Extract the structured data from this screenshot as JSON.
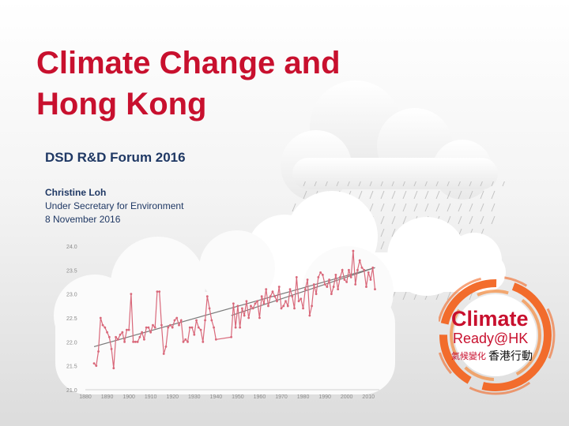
{
  "slide": {
    "title_line1": "Climate Change and",
    "title_line2": "Hong Kong",
    "subtitle": "DSD R&D Forum 2016",
    "speaker_name": "Christine Loh",
    "speaker_role": "Under Secretary for Environment",
    "date": "8 November 2016"
  },
  "logo": {
    "word1": "Climate",
    "word2": "Ready@HK",
    "chinese_red": "氣候變化",
    "chinese_black": "香港行動",
    "accent_color": "#f26522",
    "text_color": "#c8102e"
  },
  "colors": {
    "title": "#c8102e",
    "subtitle": "#1f3864",
    "series": "#d9687a",
    "trend": "#7a7a7a"
  },
  "chart_data": {
    "type": "line",
    "title": "",
    "xlabel": "",
    "ylabel": "",
    "xlim": [
      1880,
      2015
    ],
    "ylim": [
      21.0,
      24.0
    ],
    "xticks": [
      "1880",
      "1890",
      "1900",
      "1910",
      "1920",
      "1930",
      "1940",
      "1950",
      "1960",
      "1970",
      "1980",
      "1990",
      "2000",
      "2010"
    ],
    "yticks": [
      "24.0",
      "23.5",
      "23.0",
      "22.5",
      "22.0",
      "21.5",
      "21.0"
    ],
    "series": [
      {
        "x": [
          1884,
          1885,
          1886,
          1887,
          1888,
          1889,
          1890,
          1891,
          1892,
          1893,
          1894,
          1895,
          1896,
          1897,
          1898,
          1899,
          1900,
          1901,
          1902,
          1903,
          1904,
          1905,
          1906,
          1907,
          1908,
          1909,
          1910,
          1911,
          1912,
          1913,
          1914,
          1915,
          1916,
          1917,
          1918,
          1919,
          1920,
          1921,
          1922,
          1923,
          1924,
          1925,
          1926,
          1927,
          1928,
          1929,
          1930,
          1931,
          1932,
          1933,
          1934,
          1935,
          1936,
          1937,
          1938,
          1939,
          1940,
          1947,
          1948,
          1949,
          1950,
          1951,
          1952,
          1953,
          1954,
          1955,
          1956,
          1957,
          1958,
          1959,
          1960,
          1961,
          1962,
          1963,
          1964,
          1965,
          1966,
          1967,
          1968,
          1969,
          1970,
          1971,
          1972,
          1973,
          1974,
          1975,
          1976,
          1977,
          1978,
          1979,
          1980,
          1981,
          1982,
          1983,
          1984,
          1985,
          1986,
          1987,
          1988,
          1989,
          1990,
          1991,
          1992,
          1993,
          1994,
          1995,
          1996,
          1997,
          1998,
          1999,
          2000,
          2001,
          2002,
          2003,
          2004,
          2005,
          2006,
          2007,
          2008,
          2009,
          2010,
          2011,
          2012,
          2013
        ],
        "values": [
          21.55,
          21.5,
          21.8,
          22.5,
          22.35,
          22.3,
          22.2,
          22.1,
          21.85,
          21.45,
          22.1,
          22.05,
          22.15,
          22.2,
          22.0,
          22.25,
          22.25,
          23.0,
          22.0,
          22.0,
          22.0,
          22.1,
          22.2,
          22.05,
          22.3,
          22.3,
          22.2,
          22.35,
          22.3,
          23.05,
          23.05,
          22.35,
          21.75,
          21.9,
          22.3,
          22.35,
          22.3,
          22.45,
          22.5,
          22.35,
          22.45,
          22.0,
          22.05,
          22.0,
          22.3,
          22.3,
          22.15,
          22.45,
          22.3,
          22.25,
          22.0,
          22.45,
          22.95,
          22.7,
          22.45,
          22.3,
          22.05,
          22.1,
          22.8,
          22.3,
          22.75,
          22.3,
          22.7,
          22.55,
          22.85,
          22.5,
          22.75,
          22.7,
          22.8,
          22.85,
          22.5,
          22.95,
          22.8,
          23.1,
          22.75,
          22.95,
          23.05,
          22.95,
          22.85,
          23.15,
          22.7,
          22.75,
          22.85,
          22.75,
          23.1,
          22.95,
          22.7,
          23.35,
          22.85,
          22.9,
          22.7,
          23.1,
          23.3,
          22.55,
          22.75,
          23.2,
          23.0,
          23.35,
          23.45,
          23.4,
          23.2,
          23.15,
          23.3,
          23.0,
          23.15,
          23.4,
          23.1,
          23.35,
          23.5,
          23.3,
          23.25,
          23.5,
          23.35,
          23.9,
          23.2,
          23.5,
          23.7,
          23.55,
          23.5,
          23.15,
          23.45,
          23.3,
          23.55,
          23.1
        ]
      }
    ],
    "trend": [
      {
        "x": [
          1884,
          2013
        ],
        "values": [
          21.9,
          23.55
        ]
      },
      {
        "x": [
          1947,
          2013
        ],
        "values": [
          22.55,
          23.55
        ]
      }
    ],
    "grid": false,
    "legend": "none"
  }
}
